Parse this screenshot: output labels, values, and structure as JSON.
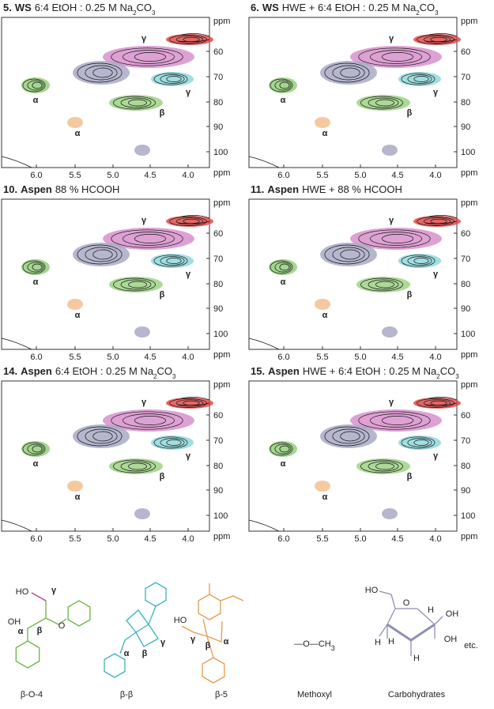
{
  "panels": [
    {
      "number": "5.",
      "sample": "WS",
      "condition": [
        "6:4 EtOH : 0.25 M Na",
        "2",
        "CO",
        "3"
      ],
      "signals": [
        "γ",
        "γ",
        "α",
        "β",
        "α"
      ]
    },
    {
      "number": "6.",
      "sample": "WS",
      "condition": [
        "HWE + 6:4 EtOH : 0.25 M Na",
        "2",
        "CO",
        "3"
      ],
      "signals": [
        "γ",
        "γ",
        "α",
        "β",
        "α"
      ]
    },
    {
      "number": "10.",
      "sample": "Aspen",
      "condition": [
        "88 % HCOOH"
      ],
      "signals": [
        "γ",
        "γ",
        "α",
        "β",
        "α"
      ]
    },
    {
      "number": "11.",
      "sample": "Aspen",
      "condition": [
        "HWE + 88 % HCOOH"
      ],
      "signals": [
        "γ",
        "γ",
        "α",
        "β",
        "α"
      ]
    },
    {
      "number": "14.",
      "sample": "Aspen",
      "condition": [
        "6:4 EtOH : 0.25 M Na",
        "2",
        "CO",
        "3"
      ],
      "signals": [
        "γ",
        "γ",
        "α",
        "β",
        "α"
      ]
    },
    {
      "number": "15.",
      "sample": "Aspen",
      "condition": [
        "HWE + 6:4 EtOH : 0.25 M Na",
        "2",
        "CO",
        "3"
      ],
      "signals": [
        "γ",
        "γ",
        "α",
        "β",
        "α"
      ]
    }
  ],
  "axis": {
    "unit": "ppm",
    "xticks": [
      "6.0",
      "5.5",
      "5.0",
      "4.5",
      "4.0"
    ],
    "yticks": [
      "60",
      "70",
      "80",
      "90",
      "100"
    ]
  },
  "structures": [
    {
      "name": "β-O-4",
      "labels": [
        "HO",
        "γ",
        "OH",
        "α",
        "β",
        "O"
      ]
    },
    {
      "name": "β-β",
      "labels": [
        "α",
        "β",
        "γ"
      ]
    },
    {
      "name": "β-5",
      "labels": [
        "HO",
        "γ",
        "β",
        "α"
      ]
    },
    {
      "name": "Methoxyl",
      "labels": [
        "—O—CH",
        "3"
      ]
    },
    {
      "name": "Carbohydrates",
      "labels": [
        "HO",
        "O",
        "OH",
        "OH",
        "H",
        "H",
        "H",
        "H",
        "etc."
      ]
    }
  ]
}
